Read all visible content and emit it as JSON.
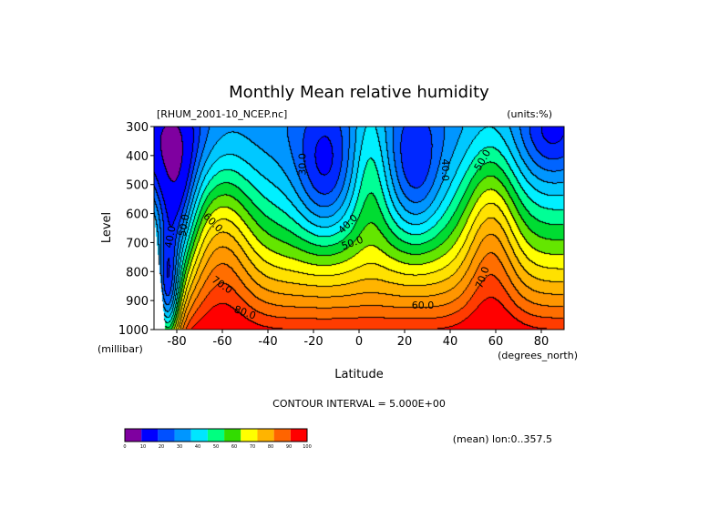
{
  "chart_data": {
    "type": "contour",
    "title": "Monthly Mean relative humidity",
    "file_label": "[RHUM_2001-10_NCEP.nc]",
    "units_label": "(units:%)",
    "xlabel": "Latitude",
    "x_units": "(degrees_north)",
    "ylabel": "Level",
    "y_units": "(millibar)",
    "xlim": [
      -90,
      90
    ],
    "ylim": [
      1000,
      300
    ],
    "x_ticks": [
      -80,
      -60,
      -40,
      -20,
      0,
      20,
      40,
      60,
      80
    ],
    "x_tick_labels": [
      "-80",
      "-60",
      "-40",
      "-20",
      "0",
      "20",
      "40",
      "60",
      "80"
    ],
    "y_ticks": [
      300,
      400,
      500,
      600,
      700,
      800,
      900,
      1000
    ],
    "y_tick_labels": [
      "300",
      "400",
      "500",
      "600",
      "700",
      "800",
      "900",
      "1000"
    ],
    "contour_interval": "CONTOUR INTERVAL = 5.000E+00",
    "mean_note": "(mean) lon:0..357.5",
    "contour_labels": [
      {
        "text": "30.0",
        "x": -25,
        "y": 430,
        "rot": -90
      },
      {
        "text": "40.0",
        "x": -5,
        "y": 635,
        "rot": -45
      },
      {
        "text": "50.0",
        "x": -3,
        "y": 700,
        "rot": -20
      },
      {
        "text": "40.0",
        "x": 38,
        "y": 450,
        "rot": 90
      },
      {
        "text": "50.0",
        "x": 54,
        "y": 415,
        "rot": -60
      },
      {
        "text": "60.0",
        "x": 28,
        "y": 915,
        "rot": 0
      },
      {
        "text": "70.0",
        "x": 54,
        "y": 820,
        "rot": -70
      },
      {
        "text": "40.0",
        "x": -83,
        "y": 680,
        "rot": -80
      },
      {
        "text": "50.0",
        "x": -77,
        "y": 640,
        "rot": -80
      },
      {
        "text": "60.0",
        "x": -64,
        "y": 630,
        "rot": 45
      },
      {
        "text": "70.0",
        "x": -60,
        "y": 845,
        "rot": 35
      },
      {
        "text": "80.0",
        "x": -50,
        "y": 940,
        "rot": 20
      }
    ],
    "colorbar": {
      "levels": [
        "0",
        "10",
        "20",
        "30",
        "40",
        "50",
        "60",
        "70",
        "80",
        "90",
        "100"
      ],
      "colors": [
        "#7f00a0",
        "#0000ff",
        "#0050ff",
        "#0096ff",
        "#00e6ff",
        "#00ff80",
        "#32dc00",
        "#ffff00",
        "#ffb400",
        "#ff6400",
        "#ff0000"
      ]
    },
    "field_model": {
      "description_of_colors": "Filled contour of zonal-mean relative humidity (%)",
      "fill_colors": [
        "#7f00a0",
        "#0000ff",
        "#0028ff",
        "#0064ff",
        "#0096ff",
        "#00c8ff",
        "#00f0ff",
        "#00ff96",
        "#00dc32",
        "#64e600",
        "#ffff00",
        "#ffe100",
        "#ffb400",
        "#ff9600",
        "#ff6e00",
        "#ff3c00",
        "#ff0000"
      ],
      "band_levels": [
        10,
        20,
        25,
        30,
        35,
        40,
        45,
        50,
        55,
        60,
        65,
        70,
        75,
        80,
        85,
        90
      ]
    }
  }
}
